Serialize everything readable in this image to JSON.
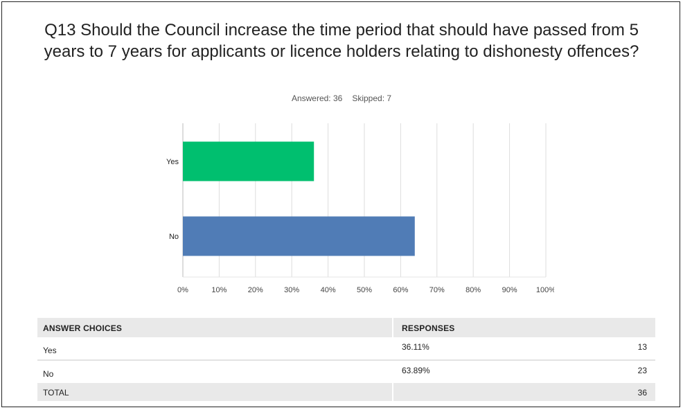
{
  "title": "Q13 Should the Council increase the time period that should have passed from 5 years to 7 years for applicants or licence holders relating to dishonesty offences?",
  "stats": {
    "answered": "Answered: 36",
    "skipped": "Skipped: 7"
  },
  "colors": {
    "yes": "#00bf6f",
    "no": "#507cb6",
    "grid": "#dddddd"
  },
  "chart_data": {
    "type": "bar",
    "orientation": "horizontal",
    "categories": [
      "Yes",
      "No"
    ],
    "values": [
      36.11,
      63.89
    ],
    "xlim": [
      0,
      100
    ],
    "x_ticks": [
      "0%",
      "10%",
      "20%",
      "30%",
      "40%",
      "50%",
      "60%",
      "70%",
      "80%",
      "90%",
      "100%"
    ],
    "grid": true
  },
  "table": {
    "headers": {
      "choices": "ANSWER CHOICES",
      "responses": "RESPONSES"
    },
    "rows": [
      {
        "choice": "Yes",
        "percent": "36.11%",
        "count": "13"
      },
      {
        "choice": "No",
        "percent": "63.89%",
        "count": "23"
      }
    ],
    "total": {
      "label": "TOTAL",
      "count": "36"
    }
  }
}
